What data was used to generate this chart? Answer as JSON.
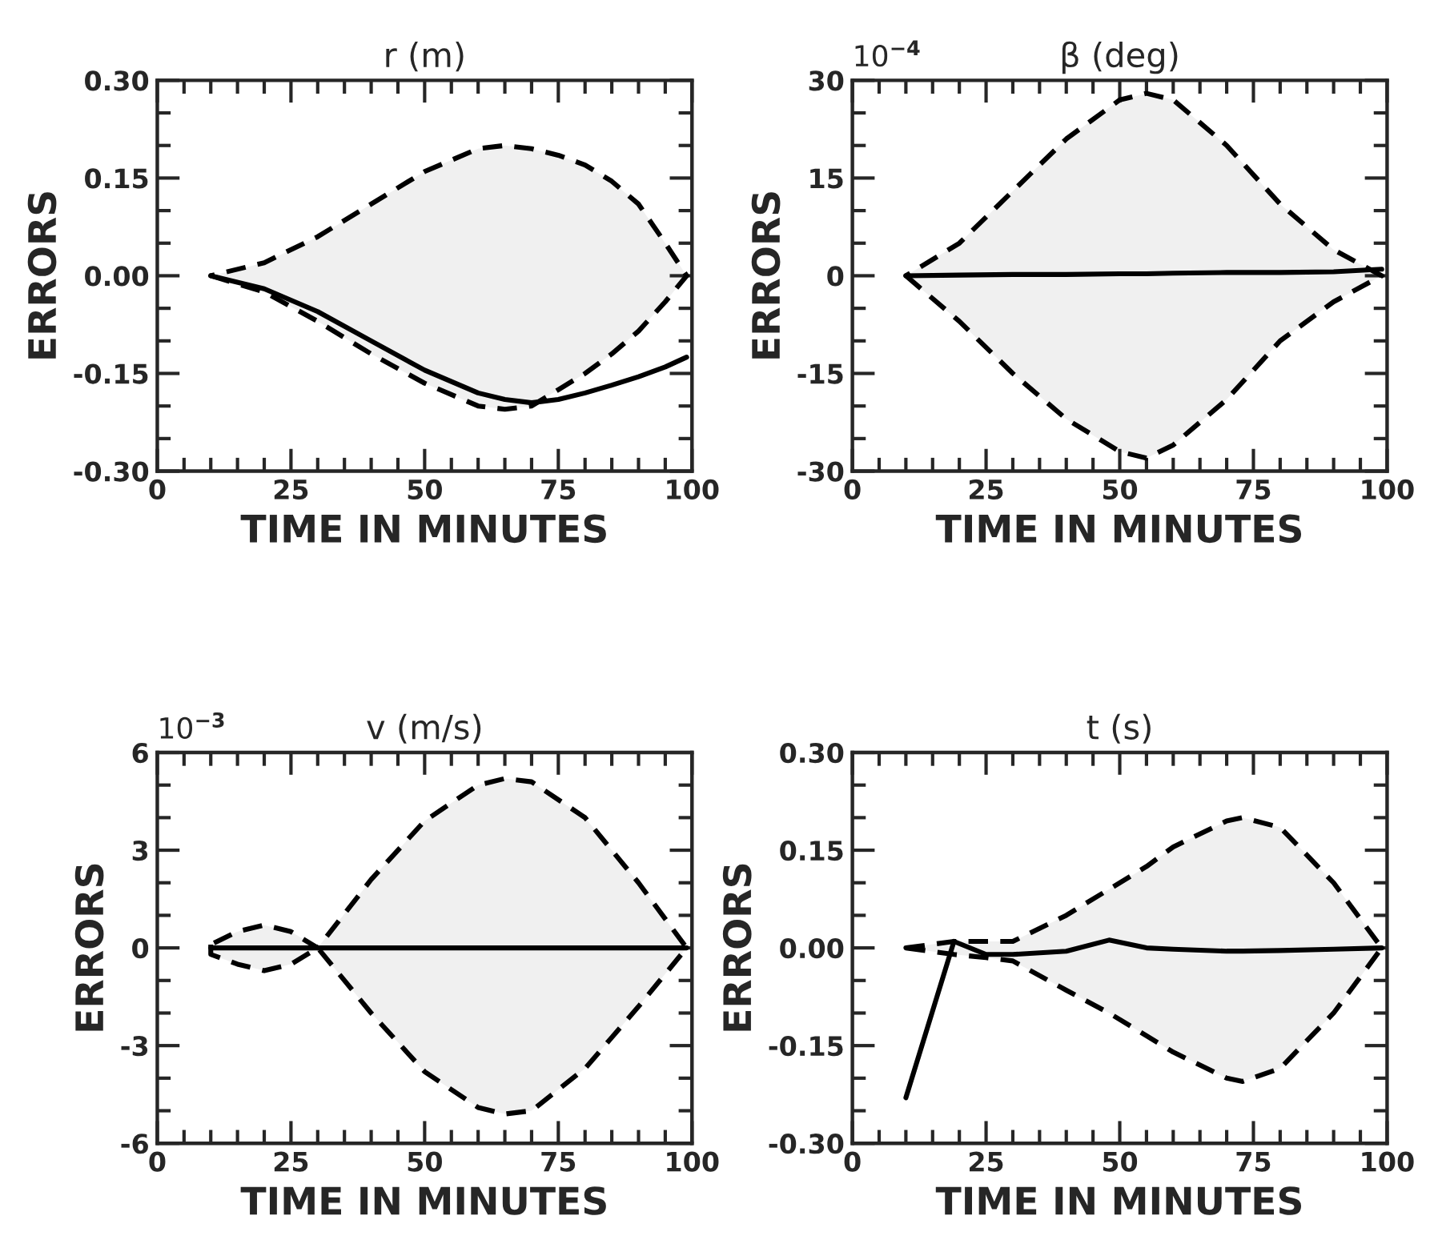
{
  "chart_data": [
    {
      "type": "line",
      "title": "r (m)",
      "xlabel": "TIME IN MINUTES",
      "ylabel": "ERRORS",
      "xlim": [
        0,
        100
      ],
      "ylim": [
        -0.3,
        0.3
      ],
      "xticks": [
        0,
        {
          "value": 5,
          "label": null
        },
        {
          "value": 10,
          "label": null
        },
        {
          "value": 15,
          "label": null
        },
        {
          "value": 20,
          "label": null
        },
        25,
        {
          "value": 30,
          "label": null
        },
        {
          "value": 35,
          "label": null
        },
        {
          "value": 40,
          "label": null
        },
        {
          "value": 45,
          "label": null
        },
        50,
        {
          "value": 55,
          "label": null
        },
        {
          "value": 60,
          "label": null
        },
        {
          "value": 65,
          "label": null
        },
        {
          "value": 70,
          "label": null
        },
        75,
        {
          "value": 80,
          "label": null
        },
        {
          "value": 85,
          "label": null
        },
        {
          "value": 90,
          "label": null
        },
        {
          "value": 95,
          "label": null
        },
        100
      ],
      "yticks": [
        {
          "value": -0.3,
          "label": "-0.30"
        },
        {
          "value": -0.25,
          "label": null
        },
        {
          "value": -0.2,
          "label": null
        },
        {
          "value": -0.15,
          "label": "-0.15"
        },
        {
          "value": -0.1,
          "label": null
        },
        {
          "value": -0.05,
          "label": null
        },
        {
          "value": 0,
          "label": "0.00"
        },
        {
          "value": 0.05,
          "label": null
        },
        {
          "value": 0.1,
          "label": null
        },
        {
          "value": 0.15,
          "label": "0.15"
        },
        {
          "value": 0.2,
          "label": null
        },
        {
          "value": 0.25,
          "label": null
        },
        {
          "value": 0.3,
          "label": "0.30"
        }
      ],
      "grid": false,
      "legend": false,
      "series": [
        {
          "color": "#000000",
          "x": [
            10,
            20,
            30,
            40,
            50,
            60,
            65,
            70,
            75,
            80,
            85,
            90,
            95,
            99
          ],
          "values": [
            0,
            -0.02,
            -0.055,
            -0.1,
            -0.145,
            -0.18,
            -0.19,
            -0.195,
            -0.19,
            -0.18,
            -0.168,
            -0.155,
            -0.14,
            -0.125
          ],
          "upper": [
            0,
            0.02,
            0.06,
            0.11,
            0.16,
            0.195,
            0.2,
            0.195,
            0.185,
            0.17,
            0.145,
            0.11,
            0.05,
            0
          ],
          "lower": [
            0,
            -0.025,
            -0.07,
            -0.12,
            -0.165,
            -0.2,
            -0.205,
            -0.2,
            -0.175,
            -0.15,
            -0.12,
            -0.085,
            -0.04,
            0
          ]
        }
      ]
    },
    {
      "type": "line",
      "title": "β (deg)",
      "annotations": [
        "10$^{−4}$"
      ],
      "xlabel": "TIME IN MINUTES",
      "ylabel": "ERRORS",
      "xlim": [
        0,
        100
      ],
      "ylim": [
        -30,
        30
      ],
      "xticks": [
        0,
        {
          "value": 5,
          "label": null
        },
        {
          "value": 10,
          "label": null
        },
        {
          "value": 15,
          "label": null
        },
        {
          "value": 20,
          "label": null
        },
        25,
        {
          "value": 30,
          "label": null
        },
        {
          "value": 35,
          "label": null
        },
        {
          "value": 40,
          "label": null
        },
        {
          "value": 45,
          "label": null
        },
        50,
        {
          "value": 55,
          "label": null
        },
        {
          "value": 60,
          "label": null
        },
        {
          "value": 65,
          "label": null
        },
        {
          "value": 70,
          "label": null
        },
        75,
        {
          "value": 80,
          "label": null
        },
        {
          "value": 85,
          "label": null
        },
        {
          "value": 90,
          "label": null
        },
        {
          "value": 95,
          "label": null
        },
        100
      ],
      "yticks": [
        -30,
        {
          "value": -25,
          "label": null
        },
        {
          "value": -20,
          "label": null
        },
        -15,
        {
          "value": -10,
          "label": null
        },
        {
          "value": -5,
          "label": null
        },
        0,
        {
          "value": 5,
          "label": null
        },
        {
          "value": 10,
          "label": null
        },
        15,
        {
          "value": 20,
          "label": null
        },
        {
          "value": 25,
          "label": null
        },
        30
      ],
      "grid": false,
      "legend": false,
      "series": [
        {
          "color": "#000000",
          "x": [
            10,
            20,
            30,
            40,
            50,
            55,
            60,
            70,
            80,
            90,
            99
          ],
          "values": [
            0,
            0.1,
            0.2,
            0.2,
            0.3,
            0.3,
            0.4,
            0.5,
            0.5,
            0.6,
            1
          ],
          "upper": [
            0,
            5,
            13,
            21,
            27,
            28,
            27,
            20,
            11,
            4,
            0
          ],
          "lower": [
            0,
            -7,
            -15,
            -22,
            -27,
            -28,
            -26,
            -19,
            -10,
            -4,
            0
          ]
        }
      ]
    },
    {
      "type": "line",
      "title": "v (m/s)",
      "annotations": [
        "10$^{−3}$"
      ],
      "xlabel": "TIME IN MINUTES",
      "ylabel": "ERRORS",
      "xlim": [
        0,
        100
      ],
      "ylim": [
        -6,
        6
      ],
      "xticks": [
        0,
        {
          "value": 5,
          "label": null
        },
        {
          "value": 10,
          "label": null
        },
        {
          "value": 15,
          "label": null
        },
        {
          "value": 20,
          "label": null
        },
        25,
        {
          "value": 30,
          "label": null
        },
        {
          "value": 35,
          "label": null
        },
        {
          "value": 40,
          "label": null
        },
        {
          "value": 45,
          "label": null
        },
        50,
        {
          "value": 55,
          "label": null
        },
        {
          "value": 60,
          "label": null
        },
        {
          "value": 65,
          "label": null
        },
        {
          "value": 70,
          "label": null
        },
        75,
        {
          "value": 80,
          "label": null
        },
        {
          "value": 85,
          "label": null
        },
        {
          "value": 90,
          "label": null
        },
        {
          "value": 95,
          "label": null
        },
        100
      ],
      "yticks": [
        -6,
        {
          "value": -5,
          "label": null
        },
        {
          "value": -4,
          "label": null
        },
        -3,
        {
          "value": -2,
          "label": null
        },
        {
          "value": -1,
          "label": null
        },
        0,
        {
          "value": 1,
          "label": null
        },
        {
          "value": 2,
          "label": null
        },
        3,
        {
          "value": 4,
          "label": null
        },
        {
          "value": 5,
          "label": null
        },
        6
      ],
      "grid": false,
      "legend": false,
      "series": [
        {
          "color": "#000000",
          "x": [
            10,
            15,
            20,
            25,
            30,
            40,
            50,
            60,
            65,
            70,
            80,
            90,
            99
          ],
          "values": [
            0,
            0,
            0,
            0,
            0,
            0,
            0,
            0,
            0,
            0,
            0,
            0,
            0
          ],
          "upper": [
            0.1,
            0.5,
            0.7,
            0.5,
            0,
            2.1,
            3.9,
            5,
            5.2,
            5.1,
            4,
            2,
            0
          ],
          "lower": [
            -0.2,
            -0.5,
            -0.7,
            -0.5,
            0,
            -2,
            -3.8,
            -4.9,
            -5.1,
            -5,
            -3.7,
            -1.8,
            0
          ]
        }
      ]
    },
    {
      "type": "line",
      "title": "t (s)",
      "xlabel": "TIME IN MINUTES",
      "ylabel": "ERRORS",
      "xlim": [
        0,
        100
      ],
      "ylim": [
        -0.3,
        0.3
      ],
      "xticks": [
        0,
        {
          "value": 5,
          "label": null
        },
        {
          "value": 10,
          "label": null
        },
        {
          "value": 15,
          "label": null
        },
        {
          "value": 20,
          "label": null
        },
        25,
        {
          "value": 30,
          "label": null
        },
        {
          "value": 35,
          "label": null
        },
        {
          "value": 40,
          "label": null
        },
        {
          "value": 45,
          "label": null
        },
        50,
        {
          "value": 55,
          "label": null
        },
        {
          "value": 60,
          "label": null
        },
        {
          "value": 65,
          "label": null
        },
        {
          "value": 70,
          "label": null
        },
        75,
        {
          "value": 80,
          "label": null
        },
        {
          "value": 85,
          "label": null
        },
        {
          "value": 90,
          "label": null
        },
        {
          "value": 95,
          "label": null
        },
        100
      ],
      "yticks": [
        {
          "value": -0.3,
          "label": "-0.30"
        },
        {
          "value": -0.25,
          "label": null
        },
        {
          "value": -0.2,
          "label": null
        },
        {
          "value": -0.15,
          "label": "-0.15"
        },
        {
          "value": -0.1,
          "label": null
        },
        {
          "value": -0.05,
          "label": null
        },
        {
          "value": 0,
          "label": "0.00"
        },
        {
          "value": 0.05,
          "label": null
        },
        {
          "value": 0.1,
          "label": null
        },
        {
          "value": 0.15,
          "label": "0.15"
        },
        {
          "value": 0.2,
          "label": null
        },
        {
          "value": 0.25,
          "label": null
        },
        {
          "value": 0.3,
          "label": "0.30"
        }
      ],
      "grid": false,
      "legend": false,
      "series": [
        {
          "color": "#000000",
          "x": [
            10,
            19,
            25,
            30,
            40,
            48,
            55,
            60,
            70,
            73,
            80,
            90,
            99
          ],
          "values": [
            -0.23,
            0.01,
            -0.01,
            -0.01,
            -0.005,
            0.012,
            0,
            -0.002,
            -0.005,
            -0.005,
            -0.004,
            -0.002,
            0
          ],
          "upper": [
            0,
            0.01,
            0.01,
            0.01,
            0.05,
            0.09,
            0.125,
            0.155,
            0.195,
            0.2,
            0.185,
            0.1,
            0
          ],
          "lower": [
            0,
            -0.01,
            -0.015,
            -0.02,
            -0.065,
            -0.1,
            -0.135,
            -0.16,
            -0.2,
            -0.205,
            -0.185,
            -0.1,
            0
          ]
        }
      ]
    }
  ]
}
